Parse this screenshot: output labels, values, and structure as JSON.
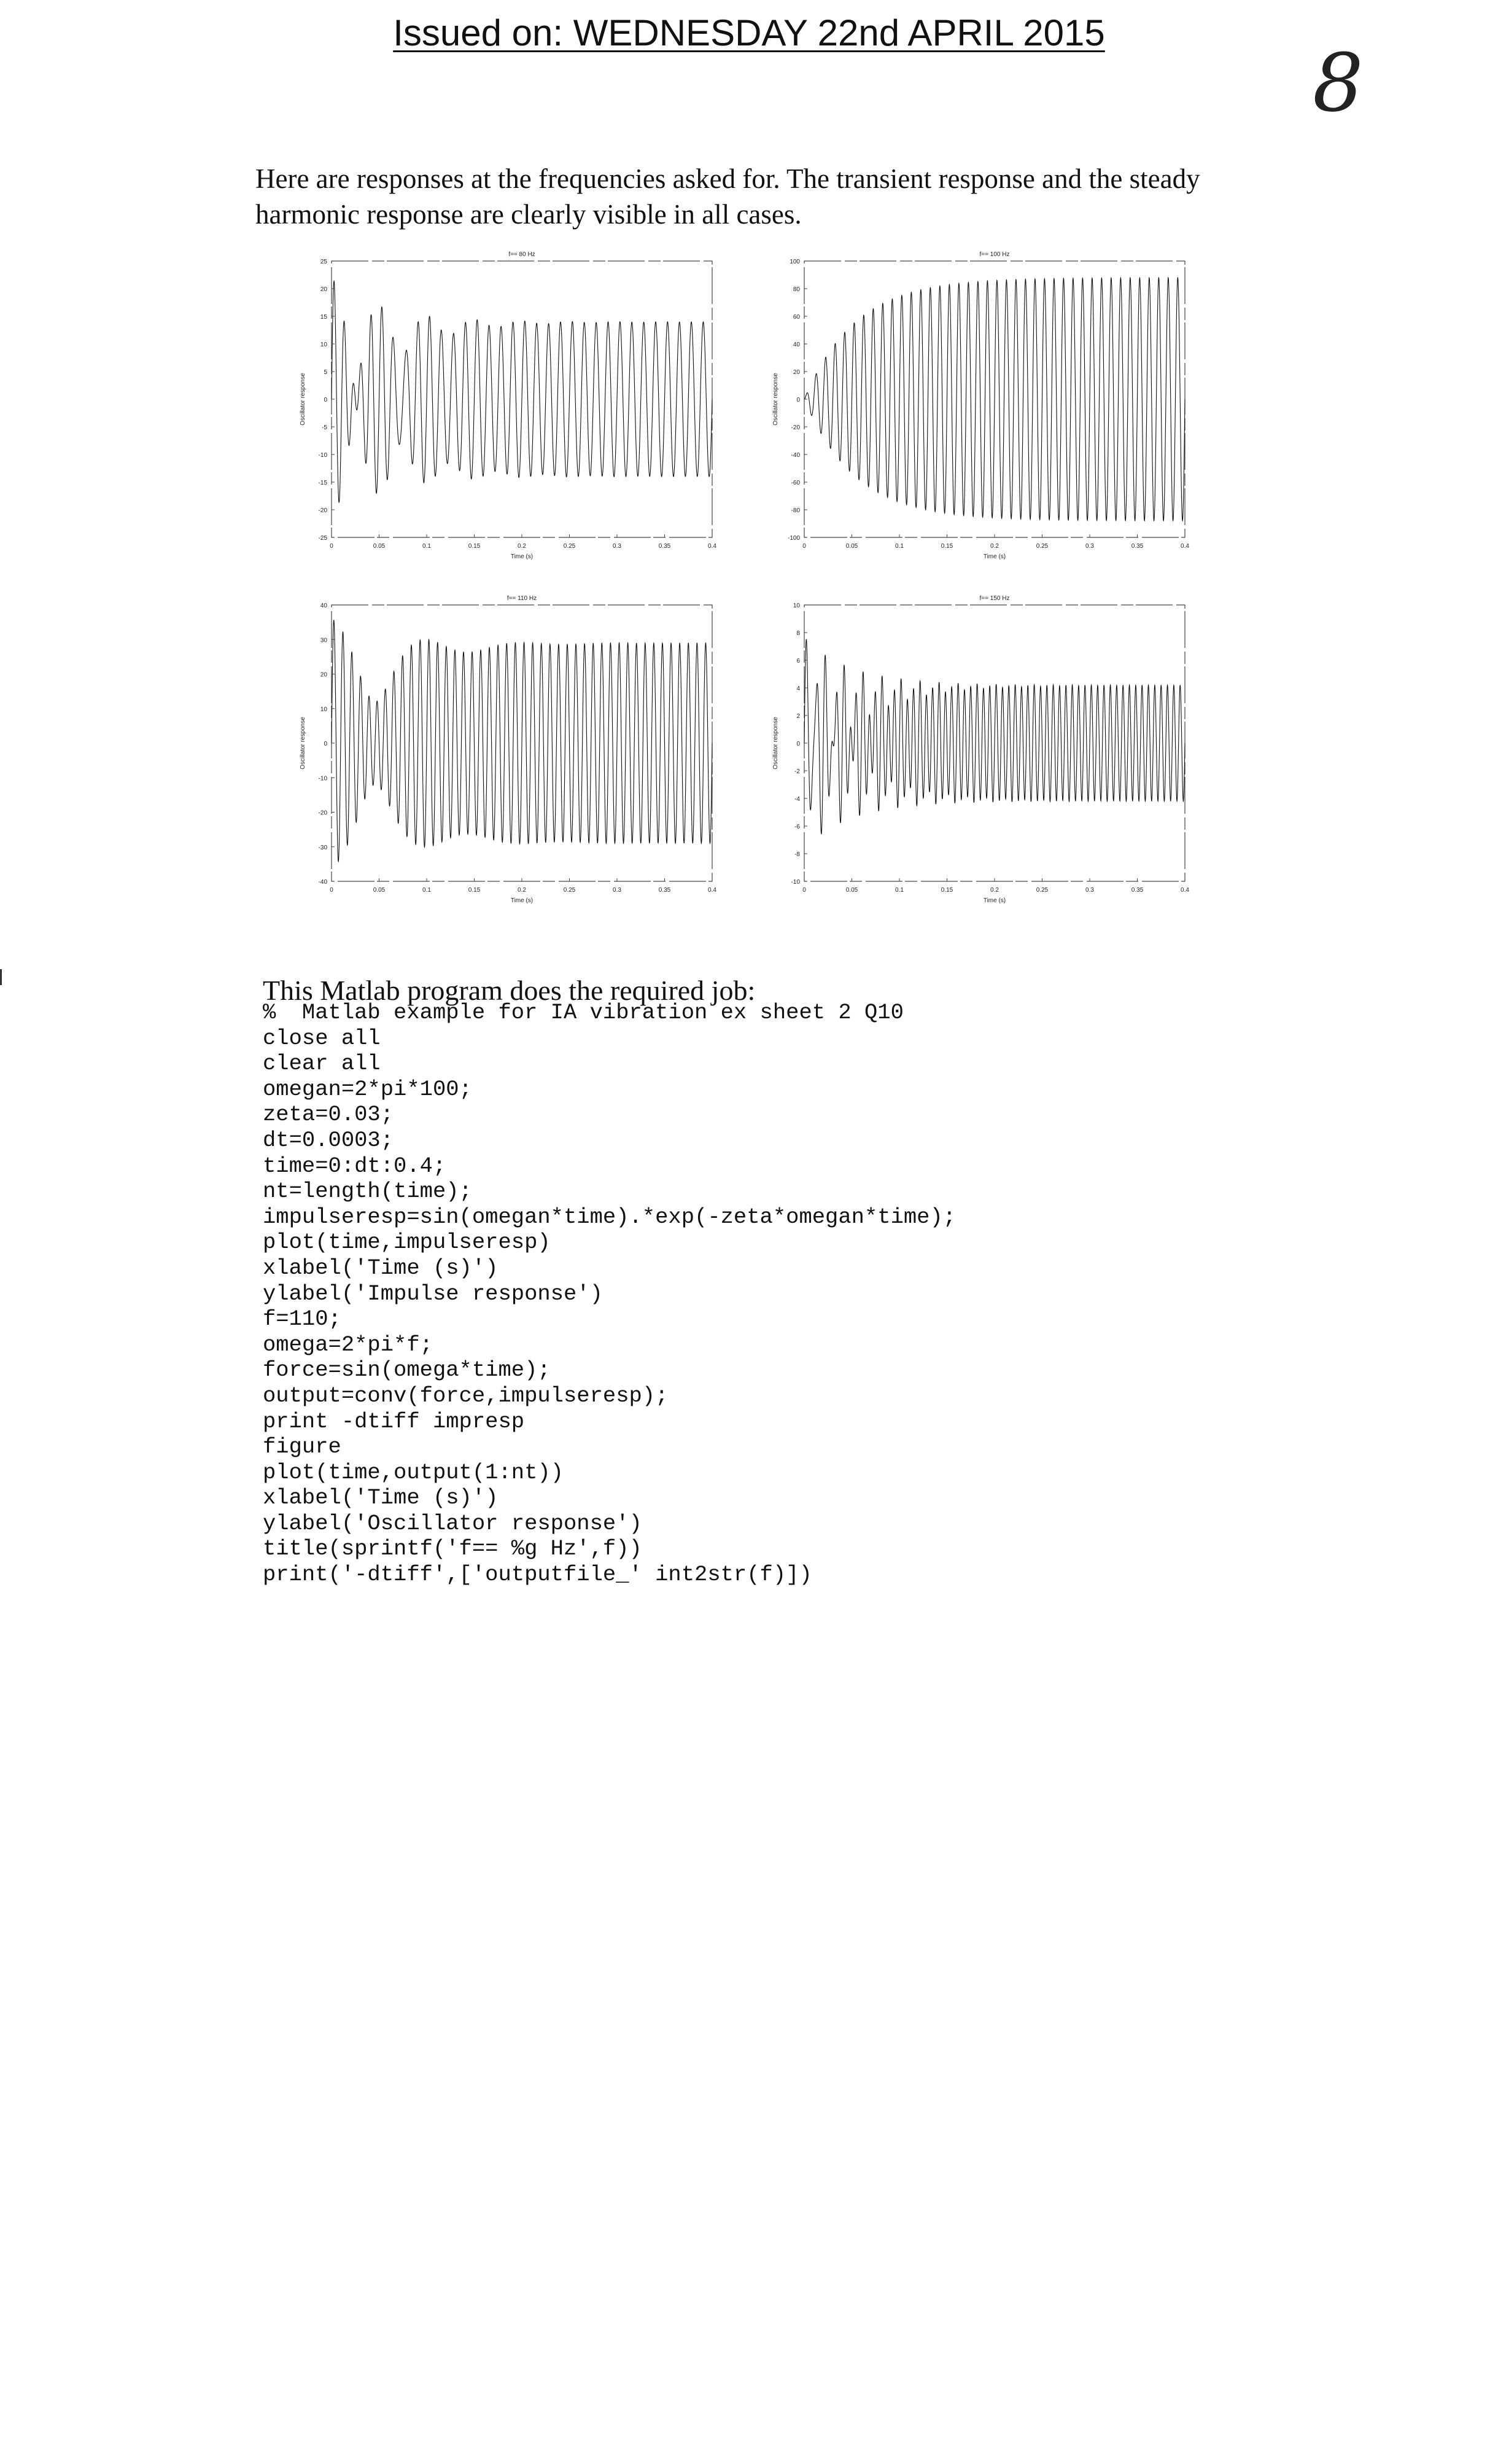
{
  "header": {
    "issued": "Issued on: WEDNESDAY 22nd APRIL 2015"
  },
  "page_number": "8",
  "intro": {
    "line1": "Here are responses at the frequencies asked for.  The transient response and the steady",
    "line2": "harmonic response are clearly visible in all cases."
  },
  "chart_data": [
    {
      "type": "line",
      "title": "f== 80 Hz",
      "xlabel": "Time (s)",
      "ylabel": "Oscillator response",
      "xlim": [
        0,
        0.4
      ],
      "ylim": [
        -25,
        25
      ],
      "xticks": [
        "0",
        "0.05",
        "0.1",
        "0.15",
        "0.2",
        "0.25",
        "0.3",
        "0.35",
        "0.4"
      ],
      "yticks": [
        "25",
        "20",
        "15",
        "10",
        "5",
        "0",
        "-5",
        "-10",
        "-15",
        "-20",
        "-25"
      ],
      "signal": {
        "drive_hz": 80,
        "natural_hz": 100,
        "steady_amplitude": 14,
        "transient_peak": 22
      }
    },
    {
      "type": "line",
      "title": "f== 100 Hz",
      "xlabel": "Time (s)",
      "ylabel": "Oscillator response",
      "xlim": [
        0,
        0.4
      ],
      "ylim": [
        -100,
        100
      ],
      "xticks": [
        "0",
        "0.05",
        "0.1",
        "0.15",
        "0.2",
        "0.25",
        "0.3",
        "0.35",
        "0.4"
      ],
      "yticks": [
        "100",
        "80",
        "60",
        "40",
        "20",
        "0",
        "-20",
        "-40",
        "-60",
        "-80",
        "-100"
      ],
      "signal": {
        "drive_hz": 100,
        "natural_hz": 100,
        "steady_amplitude": 88,
        "transient_peak": 0
      }
    },
    {
      "type": "line",
      "title": "f== 110 Hz",
      "xlabel": "Time (s)",
      "ylabel": "Oscillator response",
      "xlim": [
        0,
        0.4
      ],
      "ylim": [
        -40,
        40
      ],
      "xticks": [
        "0",
        "0.05",
        "0.1",
        "0.15",
        "0.2",
        "0.25",
        "0.3",
        "0.35",
        "0.4"
      ],
      "yticks": [
        "40",
        "30",
        "20",
        "10",
        "0",
        "-10",
        "-20",
        "-30",
        "-40"
      ],
      "signal": {
        "drive_hz": 110,
        "natural_hz": 100,
        "steady_amplitude": 29,
        "transient_peak": 36
      }
    },
    {
      "type": "line",
      "title": "f== 150 Hz",
      "xlabel": "Time (s)",
      "ylabel": "Oscillator response",
      "xlim": [
        0,
        0.4
      ],
      "ylim": [
        -10,
        10
      ],
      "xticks": [
        "0",
        "0.05",
        "0.1",
        "0.15",
        "0.2",
        "0.25",
        "0.3",
        "0.35",
        "0.4"
      ],
      "yticks": [
        "10",
        "8",
        "6",
        "4",
        "2",
        "0",
        "-2",
        "-4",
        "-6",
        "-8",
        "-10"
      ],
      "signal": {
        "drive_hz": 150,
        "natural_hz": 100,
        "steady_amplitude": 4.2,
        "transient_peak": 8
      }
    }
  ],
  "program_intro": "This Matlab program does the required job:",
  "code_lines": [
    "%  Matlab example for IA vibration ex sheet 2 Q10",
    "close all",
    "clear all",
    "omegan=2*pi*100;",
    "zeta=0.03;",
    "dt=0.0003;",
    "time=0:dt:0.4;",
    "nt=length(time);",
    "impulseresp=sin(omegan*time).*exp(-zeta*omegan*time);",
    "plot(time,impulseresp)",
    "xlabel('Time (s)')",
    "ylabel('Impulse response')",
    "f=110;",
    "omega=2*pi*f;",
    "force=sin(omega*time);",
    "output=conv(force,impulseresp);",
    "print -dtiff impresp",
    "figure",
    "plot(time,output(1:nt))",
    "xlabel('Time (s)')",
    "ylabel('Oscillator response')",
    "title(sprintf('f== %g Hz',f))",
    "print('-dtiff',['outputfile_' int2str(f)])"
  ]
}
